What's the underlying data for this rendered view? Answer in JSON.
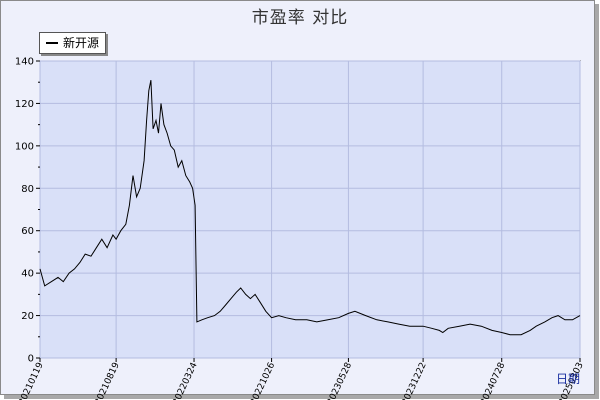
{
  "title": "市盈率  对比",
  "legend": {
    "series_name": "新开源"
  },
  "x_axis_label": "日期",
  "colors": {
    "plot_bg": "#d9e0f8",
    "grid": "#b4bce0",
    "line": "#000000",
    "frame_bg": "#eef0fb"
  },
  "chart_data": {
    "type": "line",
    "title": "市盈率  对比",
    "xlabel": "日期",
    "ylabel": "",
    "ylim": [
      0,
      140
    ],
    "yticks": [
      0,
      20,
      40,
      60,
      80,
      100,
      120,
      140
    ],
    "xticks": [
      "20210119",
      "20210819",
      "20220324",
      "20221026",
      "20230528",
      "20231222",
      "20240728",
      "20250303"
    ],
    "grid": true,
    "legend_position": "top-left",
    "series": [
      {
        "name": "新开源",
        "points": [
          [
            "2021-01-19",
            42
          ],
          [
            "2021-02-01",
            34
          ],
          [
            "2021-02-20",
            36
          ],
          [
            "2021-03-10",
            38
          ],
          [
            "2021-03-25",
            36
          ],
          [
            "2021-04-10",
            40
          ],
          [
            "2021-04-25",
            42
          ],
          [
            "2021-05-10",
            45
          ],
          [
            "2021-05-25",
            49
          ],
          [
            "2021-06-10",
            48
          ],
          [
            "2021-06-25",
            52
          ],
          [
            "2021-07-10",
            56
          ],
          [
            "2021-07-25",
            52
          ],
          [
            "2021-08-10",
            58
          ],
          [
            "2021-08-19",
            56
          ],
          [
            "2021-09-01",
            60
          ],
          [
            "2021-09-15",
            63
          ],
          [
            "2021-09-25",
            72
          ],
          [
            "2021-10-05",
            86
          ],
          [
            "2021-10-15",
            76
          ],
          [
            "2021-10-25",
            80
          ],
          [
            "2021-11-05",
            93
          ],
          [
            "2021-11-12",
            112
          ],
          [
            "2021-11-18",
            126
          ],
          [
            "2021-11-24",
            131
          ],
          [
            "2021-11-30",
            108
          ],
          [
            "2021-12-08",
            112
          ],
          [
            "2021-12-15",
            106
          ],
          [
            "2021-12-22",
            120
          ],
          [
            "2021-12-30",
            110
          ],
          [
            "2022-01-08",
            106
          ],
          [
            "2022-01-18",
            100
          ],
          [
            "2022-01-28",
            98
          ],
          [
            "2022-02-08",
            90
          ],
          [
            "2022-02-18",
            93
          ],
          [
            "2022-03-01",
            86
          ],
          [
            "2022-03-12",
            83
          ],
          [
            "2022-03-20",
            80
          ],
          [
            "2022-03-27",
            72
          ],
          [
            "2022-04-01",
            17
          ],
          [
            "2022-04-15",
            18
          ],
          [
            "2022-05-01",
            19
          ],
          [
            "2022-05-20",
            20
          ],
          [
            "2022-06-05",
            22
          ],
          [
            "2022-06-20",
            25
          ],
          [
            "2022-07-05",
            28
          ],
          [
            "2022-07-20",
            31
          ],
          [
            "2022-08-01",
            33
          ],
          [
            "2022-08-15",
            30
          ],
          [
            "2022-08-28",
            28
          ],
          [
            "2022-09-10",
            30
          ],
          [
            "2022-09-25",
            26
          ],
          [
            "2022-10-10",
            22
          ],
          [
            "2022-10-26",
            19
          ],
          [
            "2022-11-15",
            20
          ],
          [
            "2022-12-05",
            19
          ],
          [
            "2023-01-01",
            18
          ],
          [
            "2023-02-01",
            18
          ],
          [
            "2023-03-01",
            17
          ],
          [
            "2023-04-01",
            18
          ],
          [
            "2023-05-01",
            19
          ],
          [
            "2023-05-28",
            21
          ],
          [
            "2023-06-15",
            22
          ],
          [
            "2023-07-15",
            20
          ],
          [
            "2023-08-15",
            18
          ],
          [
            "2023-09-15",
            17
          ],
          [
            "2023-10-15",
            16
          ],
          [
            "2023-11-15",
            15
          ],
          [
            "2023-12-22",
            15
          ],
          [
            "2024-01-15",
            14
          ],
          [
            "2024-02-05",
            13
          ],
          [
            "2024-02-15",
            12
          ],
          [
            "2024-03-01",
            14
          ],
          [
            "2024-04-01",
            15
          ],
          [
            "2024-05-01",
            16
          ],
          [
            "2024-06-01",
            15
          ],
          [
            "2024-07-01",
            13
          ],
          [
            "2024-07-28",
            12
          ],
          [
            "2024-08-20",
            11
          ],
          [
            "2024-09-20",
            11
          ],
          [
            "2024-10-15",
            13
          ],
          [
            "2024-11-01",
            15
          ],
          [
            "2024-11-25",
            17
          ],
          [
            "2024-12-15",
            19
          ],
          [
            "2025-01-01",
            20
          ],
          [
            "2025-01-20",
            18
          ],
          [
            "2025-02-10",
            18
          ],
          [
            "2025-03-03",
            20
          ]
        ]
      }
    ]
  }
}
